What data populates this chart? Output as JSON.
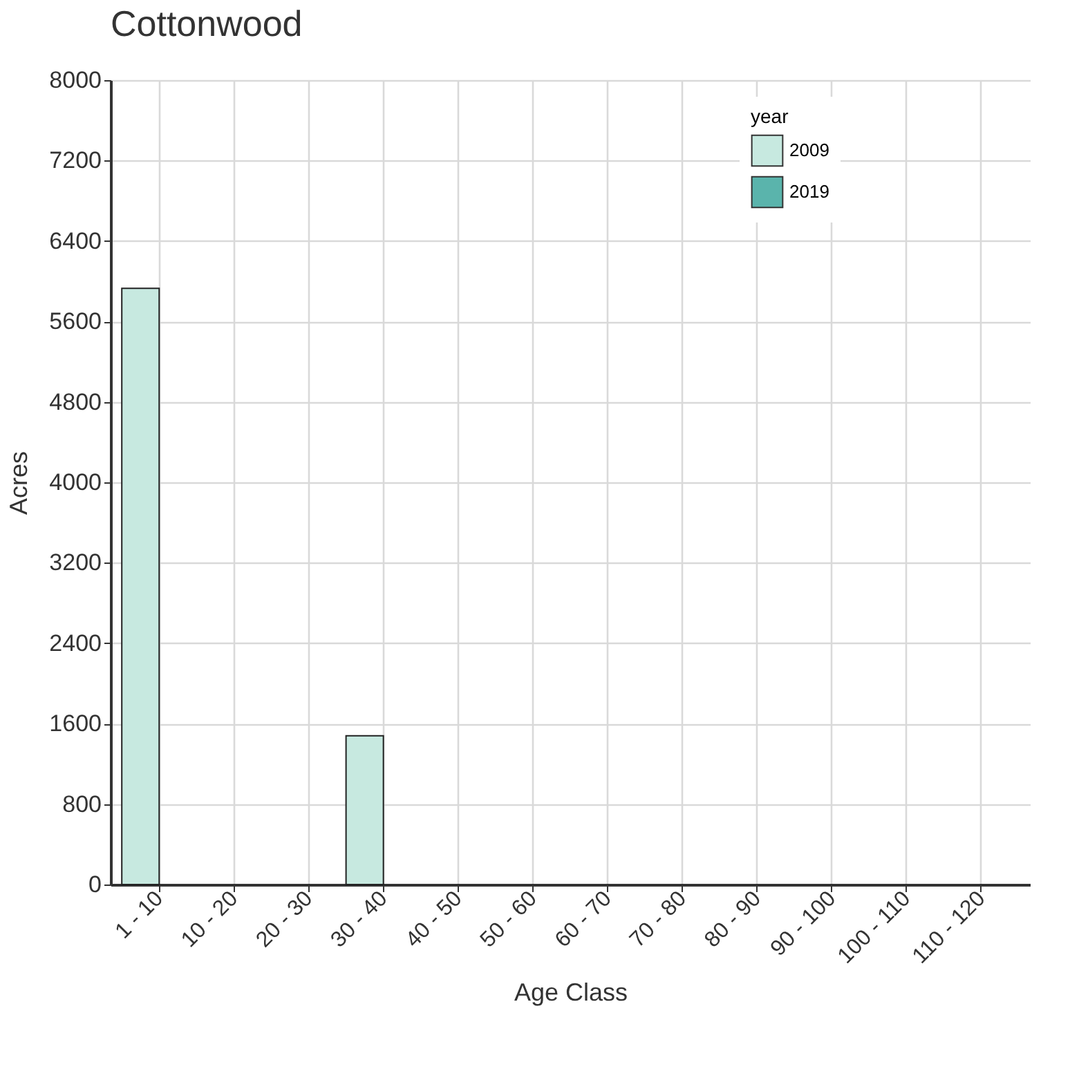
{
  "chart_data": {
    "type": "bar",
    "title": "Cottonwood",
    "xlabel": "Age Class",
    "ylabel": "Acres",
    "legend_title": "year",
    "categories": [
      "1 - 10",
      "10 - 20",
      "20 - 30",
      "30 - 40",
      "40 - 50",
      "50 - 60",
      "60 - 70",
      "70 - 80",
      "80 - 90",
      "90 - 100",
      "100 - 110",
      "110 - 120"
    ],
    "series": [
      {
        "name": "2009",
        "color": "#c7e9e0",
        "values": [
          5930,
          null,
          null,
          1480,
          null,
          null,
          null,
          null,
          null,
          null,
          null,
          null
        ]
      },
      {
        "name": "2019",
        "color": "#5ab4ac",
        "values": [
          null,
          null,
          null,
          null,
          null,
          null,
          null,
          null,
          null,
          null,
          null,
          null
        ]
      }
    ],
    "ylim": [
      0,
      8000
    ],
    "yticks": [
      0,
      800,
      1600,
      2400,
      3200,
      4000,
      4800,
      5600,
      6400,
      7200,
      8000
    ],
    "grid": true,
    "legend": "top right"
  }
}
